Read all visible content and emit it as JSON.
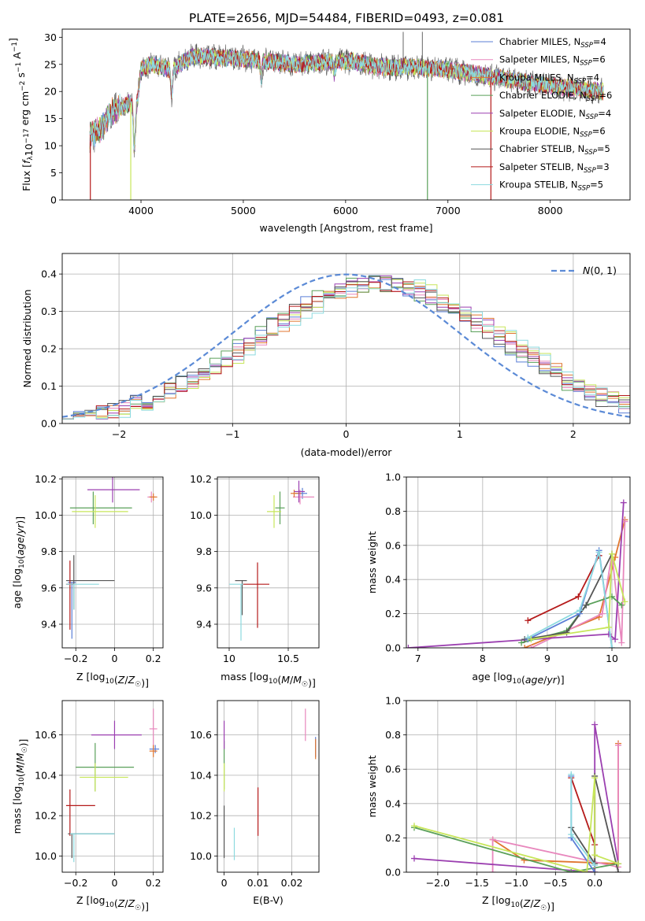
{
  "title": "PLATE=2656, MJD=54484, FIBERID=0493, z=0.081",
  "colors": [
    "#5b7fd6",
    "#e887bd",
    "#e0762f",
    "#5aa05a",
    "#9b3fb0",
    "#c7e65a",
    "#555555",
    "#b51a1a",
    "#8cdadf"
  ],
  "model_labels": [
    "Chabrier MILES, N_SSP=4",
    "Salpeter MILES, N_SSP=6",
    "Kroupa MILES, N_SSP=4",
    "Chabrier ELODIE, N_SSP=6",
    "Salpeter ELODIE, N_SSP=4",
    "Kroupa ELODIE, N_SSP=6",
    "Chabrier STELIB, N_SSP=5",
    "Salpeter STELIB, N_SSP=3",
    "Kroupa STELIB, N_SSP=5"
  ],
  "chart_data": [
    {
      "id": "spectrum",
      "type": "line",
      "xlabel": "wavelength [Angstrom, rest frame]",
      "ylabel": "Flux [f_λ 10^-17 erg cm^-2 s^-1 A^-1]",
      "xlim": [
        3230,
        8780
      ],
      "ylim": [
        0,
        31.5
      ],
      "xticks": [
        4000,
        5000,
        6000,
        7000,
        8000
      ],
      "yticks": [
        0,
        5,
        10,
        15,
        20,
        25,
        30
      ],
      "legend": "top-right",
      "continuum_knots": [
        [
          3500,
          12.0
        ],
        [
          3600,
          13.0
        ],
        [
          3700,
          16.0
        ],
        [
          3800,
          17.0
        ],
        [
          3900,
          18.0
        ],
        [
          3950,
          16.0
        ],
        [
          4000,
          24.0
        ],
        [
          4100,
          25.0
        ],
        [
          4300,
          24.0
        ],
        [
          4500,
          26.5
        ],
        [
          5000,
          26.0
        ],
        [
          5500,
          25.0
        ],
        [
          5900,
          25.5
        ],
        [
          6100,
          25.5
        ],
        [
          6300,
          24.5
        ],
        [
          6700,
          24.5
        ],
        [
          7000,
          24.0
        ],
        [
          7500,
          22.5
        ],
        [
          8000,
          21.0
        ],
        [
          8500,
          20.0
        ]
      ],
      "dips": [
        [
          3934,
          7.0
        ],
        [
          4300,
          5.0
        ],
        [
          5175,
          3.0
        ],
        [
          5890,
          2.0
        ]
      ],
      "spikes": [
        [
          6563,
          31.0
        ],
        [
          6750,
          31.0
        ]
      ]
    },
    {
      "id": "residual_histogram",
      "type": "histogram",
      "xlabel": "(data-model)/error",
      "ylabel": "Normed distribution",
      "xlim": [
        -2.5,
        2.5
      ],
      "ylim": [
        0,
        0.455
      ],
      "xticks": [
        -2,
        -1,
        0,
        1,
        2
      ],
      "yticks": [
        0.0,
        0.1,
        0.2,
        0.3,
        0.4
      ],
      "reference_curve": "N(0,1)",
      "legend": "top-right",
      "bin_width": 0.1
    },
    {
      "id": "age_vs_Z",
      "type": "errorbar",
      "xlabel": "Z [log10(Z/Z☉)]",
      "ylabel": "age [log10(age/yr)]",
      "xlim": [
        -0.27,
        0.25
      ],
      "ylim": [
        9.27,
        10.21
      ],
      "xticks": [
        -0.2,
        0.0,
        0.2
      ],
      "yticks": [
        9.4,
        9.6,
        9.8,
        10.0,
        10.2
      ],
      "points": [
        {
          "series": 0,
          "x": -0.22,
          "y": 9.63,
          "xerr": [
            0.02,
            0.02
          ],
          "yerr": [
            0.31,
            0.0
          ]
        },
        {
          "series": 1,
          "x": 0.19,
          "y": 10.1,
          "xerr": [
            0.02,
            0.02
          ],
          "yerr": [
            0.03,
            0.03
          ]
        },
        {
          "series": 2,
          "x": 0.2,
          "y": 10.1,
          "xerr": [
            0.02,
            0.02
          ],
          "yerr": [
            0.02,
            0.02
          ]
        },
        {
          "series": 3,
          "x": -0.11,
          "y": 10.04,
          "xerr": [
            0.12,
            0.2
          ],
          "yerr": [
            0.09,
            0.09
          ]
        },
        {
          "series": 4,
          "x": -0.01,
          "y": 10.14,
          "xerr": [
            0.13,
            0.14
          ],
          "yerr": [
            0.07,
            0.07
          ]
        },
        {
          "series": 5,
          "x": -0.1,
          "y": 10.02,
          "xerr": [
            0.12,
            0.17
          ],
          "yerr": [
            0.09,
            0.09
          ]
        },
        {
          "series": 6,
          "x": -0.21,
          "y": 9.64,
          "xerr": [
            0.04,
            0.21
          ],
          "yerr": [
            0.16,
            0.14
          ]
        },
        {
          "series": 7,
          "x": -0.23,
          "y": 9.62,
          "xerr": [
            0.02,
            0.02
          ],
          "yerr": [
            0.25,
            0.13
          ]
        },
        {
          "series": 8,
          "x": -0.21,
          "y": 9.62,
          "xerr": [
            0.04,
            0.13
          ],
          "yerr": [
            0.14,
            0.0
          ]
        }
      ]
    },
    {
      "id": "age_vs_mass",
      "type": "errorbar",
      "xlabel": "mass [log10(M/M☉)]",
      "ylabel": "",
      "xlim": [
        9.9,
        10.76
      ],
      "ylim": [
        9.27,
        10.21
      ],
      "xticks": [
        10.0,
        10.5
      ],
      "yticks": [
        9.4,
        9.6,
        9.8,
        10.0,
        10.2
      ],
      "points": [
        {
          "series": 0,
          "x": 10.62,
          "y": 10.12,
          "xerr": [
            0.06,
            0.04
          ],
          "yerr": [
            0.03,
            0.03
          ]
        },
        {
          "series": 1,
          "x": 10.6,
          "y": 10.1,
          "xerr": [
            0.06,
            0.12
          ],
          "yerr": [
            0.04,
            0.04
          ]
        },
        {
          "series": 2,
          "x": 10.55,
          "y": 10.12,
          "xerr": [
            0.03,
            0.06
          ],
          "yerr": [
            0.02,
            0.02
          ]
        },
        {
          "series": 3,
          "x": 10.43,
          "y": 10.04,
          "xerr": [
            0.04,
            0.04
          ],
          "yerr": [
            0.09,
            0.09
          ]
        },
        {
          "series": 4,
          "x": 10.59,
          "y": 10.13,
          "xerr": [
            0.04,
            0.05
          ],
          "yerr": [
            0.06,
            0.06
          ]
        },
        {
          "series": 5,
          "x": 10.38,
          "y": 10.02,
          "xerr": [
            0.06,
            0.06
          ],
          "yerr": [
            0.09,
            0.09
          ]
        },
        {
          "series": 6,
          "x": 10.11,
          "y": 9.64,
          "xerr": [
            0.06,
            0.04
          ],
          "yerr": [
            0.19,
            0.0
          ]
        },
        {
          "series": 7,
          "x": 10.24,
          "y": 9.62,
          "xerr": [
            0.13,
            0.1
          ],
          "yerr": [
            0.24,
            0.12
          ]
        },
        {
          "series": 8,
          "x": 10.1,
          "y": 9.62,
          "xerr": [
            0.1,
            0.02
          ],
          "yerr": [
            0.31,
            0.0
          ]
        }
      ]
    },
    {
      "id": "weight_vs_age",
      "type": "line",
      "xlabel": "age [log10(age/yr)]",
      "ylabel": "mass weight",
      "xlim": [
        6.82,
        10.28
      ],
      "ylim": [
        0,
        1.0
      ],
      "xticks": [
        7,
        8,
        9,
        10
      ],
      "yticks": [
        0.0,
        0.2,
        0.4,
        0.6,
        0.8,
        1.0
      ],
      "series": [
        {
          "series": 2,
          "points": [
            [
              8.65,
              0.0
            ],
            [
              9.8,
              0.18
            ],
            [
              10.05,
              0.53
            ],
            [
              10.2,
              0.75
            ]
          ]
        },
        {
          "series": 1,
          "points": [
            [
              8.75,
              0.0
            ],
            [
              9.85,
              0.2
            ],
            [
              10.0,
              0.55
            ],
            [
              10.15,
              0.03
            ],
            [
              10.2,
              0.74
            ]
          ]
        },
        {
          "series": 4,
          "points": [
            [
              6.85,
              0.0
            ],
            [
              9.95,
              0.08
            ],
            [
              10.05,
              0.05
            ],
            [
              10.18,
              0.85
            ]
          ]
        },
        {
          "series": 7,
          "points": [
            [
              8.7,
              0.16
            ],
            [
              9.48,
              0.3
            ],
            [
              9.8,
              0.54
            ]
          ]
        },
        {
          "series": 3,
          "points": [
            [
              8.6,
              0.03
            ],
            [
              9.3,
              0.1
            ],
            [
              9.6,
              0.25
            ],
            [
              10.0,
              0.3
            ],
            [
              10.15,
              0.25
            ]
          ]
        },
        {
          "series": 6,
          "points": [
            [
              8.65,
              0.05
            ],
            [
              9.3,
              0.09
            ],
            [
              9.6,
              0.25
            ],
            [
              10.0,
              0.55
            ]
          ]
        },
        {
          "series": 0,
          "points": [
            [
              8.7,
              0.05
            ],
            [
              9.5,
              0.2
            ],
            [
              9.8,
              0.57
            ],
            [
              10.0,
              0.0
            ]
          ]
        },
        {
          "series": 8,
          "points": [
            [
              8.7,
              0.06
            ],
            [
              9.5,
              0.22
            ],
            [
              9.8,
              0.56
            ],
            [
              10.0,
              0.0
            ]
          ]
        },
        {
          "series": 5,
          "points": [
            [
              8.75,
              0.05
            ],
            [
              9.95,
              0.12
            ],
            [
              10.0,
              0.55
            ],
            [
              10.2,
              0.27
            ]
          ]
        }
      ]
    },
    {
      "id": "mass_vs_Z",
      "type": "errorbar",
      "xlabel": "Z [log10(Z/Z☉)]",
      "ylabel": "mass [log10(M/M☉)]",
      "xlim": [
        -0.27,
        0.25
      ],
      "ylim": [
        9.92,
        10.77
      ],
      "xticks": [
        -0.2,
        0.0,
        0.2
      ],
      "yticks": [
        10.0,
        10.2,
        10.4,
        10.6
      ],
      "points": [
        {
          "series": 0,
          "x": 0.21,
          "y": 10.53,
          "xerr": [
            0.03,
            0.02
          ],
          "yerr": [
            0.02,
            0.02
          ]
        },
        {
          "series": 1,
          "x": 0.2,
          "y": 10.63,
          "xerr": [
            0.02,
            0.02
          ],
          "yerr": [
            0.1,
            0.1
          ]
        },
        {
          "series": 2,
          "x": 0.2,
          "y": 10.52,
          "xerr": [
            0.02,
            0.02
          ],
          "yerr": [
            0.03,
            0.03
          ]
        },
        {
          "series": 3,
          "x": -0.1,
          "y": 10.44,
          "xerr": [
            0.1,
            0.2
          ],
          "yerr": [
            0.12,
            0.12
          ]
        },
        {
          "series": 4,
          "x": 0.0,
          "y": 10.6,
          "xerr": [
            0.12,
            0.14
          ],
          "yerr": [
            0.07,
            0.07
          ]
        },
        {
          "series": 5,
          "x": -0.1,
          "y": 10.39,
          "xerr": [
            0.08,
            0.17
          ],
          "yerr": [
            0.07,
            0.07
          ]
        },
        {
          "series": 6,
          "x": -0.22,
          "y": 10.11,
          "xerr": [
            0.02,
            0.22
          ],
          "yerr": [
            0.12,
            0.0
          ]
        },
        {
          "series": 7,
          "x": -0.23,
          "y": 10.25,
          "xerr": [
            0.02,
            0.13
          ],
          "yerr": [
            0.15,
            0.08
          ]
        },
        {
          "series": 8,
          "x": -0.21,
          "y": 10.11,
          "xerr": [
            0.02,
            0.21
          ],
          "yerr": [
            0.14,
            0.0
          ]
        }
      ]
    },
    {
      "id": "mass_vs_EBV",
      "type": "errorbar",
      "xlabel": "E(B-V)",
      "ylabel": "",
      "xlim": [
        -0.002,
        0.028
      ],
      "ylim": [
        9.92,
        10.77
      ],
      "xticks": [
        0.0,
        0.01,
        0.02
      ],
      "yticks": [
        10.0,
        10.2,
        10.4,
        10.6
      ],
      "points": [
        {
          "series": 0,
          "x": 0.027,
          "y": 10.54,
          "xerr": [
            0.0,
            0.0
          ],
          "yerr": [
            0.05,
            0.05
          ]
        },
        {
          "series": 1,
          "x": 0.024,
          "y": 10.65,
          "xerr": [
            0.0,
            0.0
          ],
          "yerr": [
            0.08,
            0.08
          ]
        },
        {
          "series": 2,
          "x": 0.027,
          "y": 10.53,
          "xerr": [
            0.0,
            0.0
          ],
          "yerr": [
            0.05,
            0.05
          ]
        },
        {
          "series": 3,
          "x": 0.0,
          "y": 10.45,
          "xerr": [
            0.0,
            0.0
          ],
          "yerr": [
            0.12,
            0.12
          ]
        },
        {
          "series": 4,
          "x": 0.0,
          "y": 10.6,
          "xerr": [
            0.0,
            0.0
          ],
          "yerr": [
            0.07,
            0.07
          ]
        },
        {
          "series": 5,
          "x": 0.0,
          "y": 10.39,
          "xerr": [
            0.0,
            0.0
          ],
          "yerr": [
            0.07,
            0.07
          ]
        },
        {
          "series": 6,
          "x": 0.0,
          "y": 10.12,
          "xerr": [
            0.0,
            0.0
          ],
          "yerr": [
            0.13,
            0.13
          ]
        },
        {
          "series": 7,
          "x": 0.01,
          "y": 10.22,
          "xerr": [
            0.0,
            0.0
          ],
          "yerr": [
            0.12,
            0.12
          ]
        },
        {
          "series": 8,
          "x": 0.003,
          "y": 10.06,
          "xerr": [
            0.0,
            0.0
          ],
          "yerr": [
            0.08,
            0.08
          ]
        }
      ]
    },
    {
      "id": "weight_vs_Z",
      "type": "line",
      "xlabel": "Z [log10(Z/Z☉)]",
      "ylabel": "mass weight",
      "xlim": [
        -2.4,
        0.45
      ],
      "ylim": [
        0,
        1.0
      ],
      "xticks": [
        -2.0,
        -1.5,
        -1.0,
        -0.5,
        0.0
      ],
      "yticks": [
        0.0,
        0.2,
        0.4,
        0.6,
        0.8,
        1.0
      ],
      "series": [
        {
          "series": 2,
          "points": [
            [
              -1.3,
              0.19
            ],
            [
              -0.9,
              0.07
            ],
            [
              0.3,
              0.05
            ],
            [
              0.3,
              0.75
            ]
          ]
        },
        {
          "series": 1,
          "points": [
            [
              -1.3,
              0.0
            ],
            [
              -1.3,
              0.19
            ],
            [
              0.3,
              0.03
            ],
            [
              0.3,
              0.74
            ]
          ]
        },
        {
          "series": 4,
          "points": [
            [
              -2.3,
              0.08
            ],
            [
              0.0,
              0.0
            ],
            [
              0.0,
              0.86
            ],
            [
              0.3,
              0.05
            ]
          ]
        },
        {
          "series": 3,
          "points": [
            [
              -2.3,
              0.26
            ],
            [
              -0.3,
              0.0
            ],
            [
              0.3,
              0.05
            ]
          ]
        },
        {
          "series": 7,
          "points": [
            [
              -0.3,
              0.55
            ],
            [
              0.0,
              0.16
            ],
            [
              0.0,
              0.0
            ]
          ]
        },
        {
          "series": 6,
          "points": [
            [
              -0.3,
              0.26
            ],
            [
              0.0,
              0.05
            ],
            [
              0.0,
              0.56
            ],
            [
              0.3,
              0.0
            ]
          ]
        },
        {
          "series": 0,
          "points": [
            [
              -0.3,
              0.56
            ],
            [
              -0.3,
              0.2
            ],
            [
              0.0,
              0.0
            ]
          ]
        },
        {
          "series": 8,
          "points": [
            [
              -0.3,
              0.57
            ],
            [
              -0.3,
              0.22
            ],
            [
              0.0,
              0.04
            ]
          ]
        },
        {
          "series": 5,
          "points": [
            [
              -2.3,
              0.27
            ],
            [
              -0.1,
              0.0
            ],
            [
              0.0,
              0.55
            ],
            [
              0.0,
              0.1
            ],
            [
              0.3,
              0.05
            ]
          ]
        }
      ]
    }
  ]
}
